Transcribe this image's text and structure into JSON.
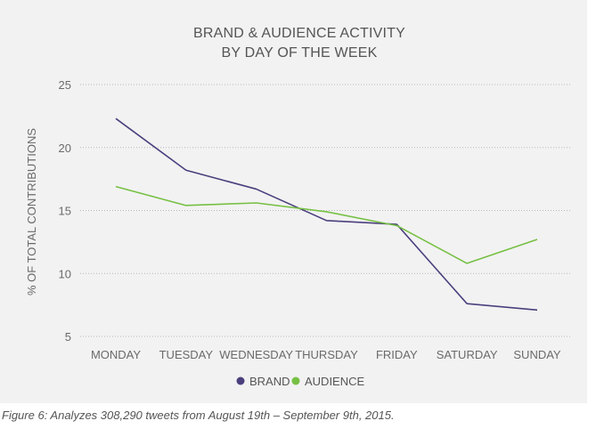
{
  "chart_data": {
    "type": "line",
    "title_lines": [
      "BRAND & AUDIENCE ACTIVITY",
      "BY DAY OF THE WEEK"
    ],
    "categories": [
      "MONDAY",
      "TUESDAY",
      "WEDNESDAY",
      "THURSDAY",
      "FRIDAY",
      "SATURDAY",
      "SUNDAY"
    ],
    "ylabel": "% OF TOTAL CONTRIBUTIONS",
    "xlabel": "",
    "ylim": [
      5,
      25
    ],
    "yticks": [
      5,
      10,
      15,
      20,
      25
    ],
    "grid": true,
    "legend_position": "bottom-center",
    "series": [
      {
        "name": "BRAND",
        "color": "#4b3f7d",
        "values": [
          22.3,
          18.2,
          16.7,
          14.2,
          13.9,
          7.6,
          7.1
        ]
      },
      {
        "name": "AUDIENCE",
        "color": "#76c043",
        "values": [
          16.9,
          15.4,
          15.6,
          14.9,
          13.8,
          10.8,
          12.7
        ]
      }
    ]
  },
  "caption": "Figure 6: Analyzes 308,290 tweets from August 19th – September 9th, 2015."
}
